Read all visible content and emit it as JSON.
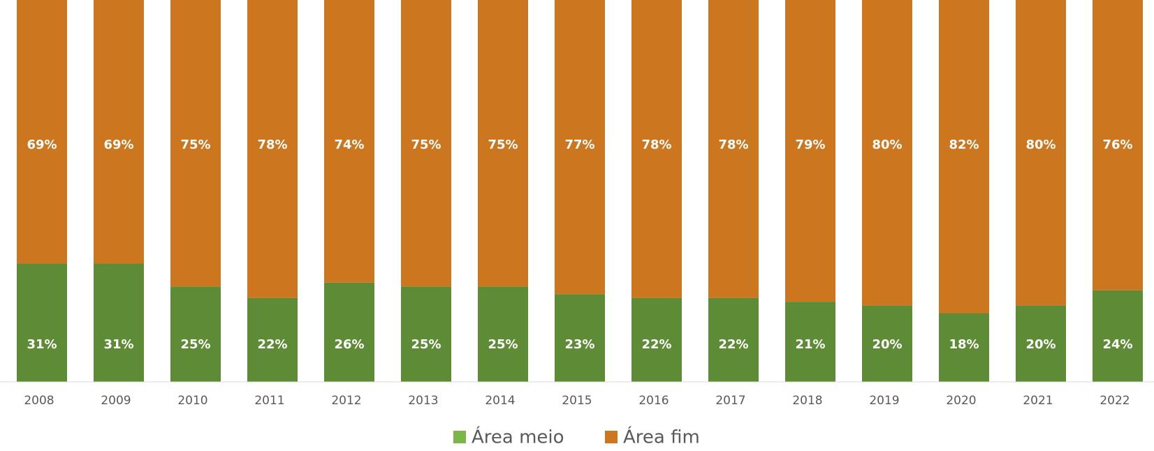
{
  "chart_data": {
    "type": "stacked_bar",
    "categories": [
      "2008",
      "2009",
      "2010",
      "2011",
      "2012",
      "2013",
      "2014",
      "2015",
      "2016",
      "2017",
      "2018",
      "2019",
      "2020",
      "2021",
      "2022"
    ],
    "series": [
      {
        "name": "Área meio",
        "color": "#5e8b35",
        "values": [
          31,
          31,
          25,
          22,
          26,
          25,
          25,
          23,
          22,
          22,
          21,
          20,
          18,
          20,
          24
        ],
        "value_labels": [
          "31%",
          "31%",
          "25%",
          "22%",
          "26%",
          "25%",
          "25%",
          "23%",
          "22%",
          "22%",
          "21%",
          "20%",
          "18%",
          "20%",
          "24%"
        ]
      },
      {
        "name": "Área fim",
        "color": "#cc761f",
        "values": [
          69,
          69,
          75,
          78,
          74,
          75,
          75,
          77,
          78,
          78,
          79,
          80,
          82,
          80,
          76
        ],
        "value_labels": [
          "69%",
          "69%",
          "75%",
          "78%",
          "74%",
          "75%",
          "75%",
          "77%",
          "78%",
          "78%",
          "79%",
          "80%",
          "82%",
          "80%",
          "76%"
        ]
      }
    ],
    "legend": "bottom"
  }
}
